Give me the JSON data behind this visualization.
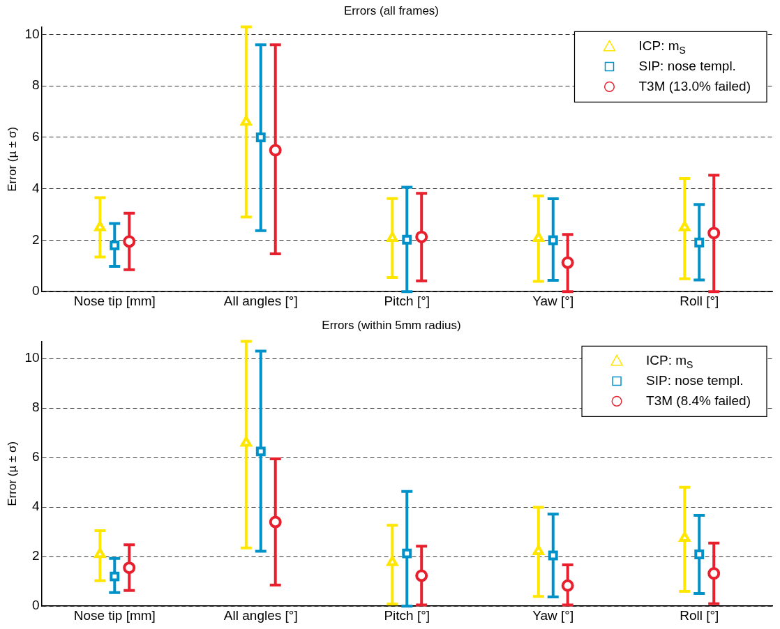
{
  "chart_data": [
    {
      "type": "scatter",
      "title": "Errors (all frames)",
      "ylabel": "Error (µ ± σ)",
      "categories": [
        "Nose tip [mm]",
        "All angles [°]",
        "Pitch [°]",
        "Yaw [°]",
        "Roll [°]"
      ],
      "ylim": [
        0,
        10.3
      ],
      "yticks": [
        0,
        2,
        4,
        6,
        8,
        10
      ],
      "grid": "y",
      "legend": "top right",
      "series": [
        {
          "name": "ICP: m$_{S}$",
          "color": "#ffe600",
          "marker": "triangle",
          "values": [
            2.5,
            6.6,
            2.08,
            2.08,
            2.5
          ],
          "errors": [
            [
              1.35,
              3.65
            ],
            [
              2.9,
              10.3
            ],
            [
              0.55,
              3.62
            ],
            [
              0.4,
              3.72
            ],
            [
              0.5,
              4.4
            ]
          ]
        },
        {
          "name": "SIP: nose templ.",
          "color": "#0091c8",
          "marker": "square",
          "values": [
            1.8,
            6.0,
            2.02,
            2.0,
            1.91
          ],
          "errors": [
            [
              0.98,
              2.65
            ],
            [
              2.37,
              9.6
            ],
            [
              0,
              4.06
            ],
            [
              0.44,
              3.61
            ],
            [
              0.45,
              3.39
            ]
          ]
        },
        {
          "name": "T3M (13.0% failed)",
          "color": "#e8202e",
          "marker": "circle",
          "values": [
            1.95,
            5.5,
            2.13,
            1.13,
            2.28
          ],
          "errors": [
            [
              0.85,
              3.05
            ],
            [
              1.47,
              9.6
            ],
            [
              0.42,
              3.82
            ],
            [
              0,
              2.22
            ],
            [
              0,
              4.53
            ]
          ]
        }
      ]
    },
    {
      "type": "scatter",
      "title": "Errors (within 5mm radius)",
      "ylabel": "Error (µ ± σ)",
      "categories": [
        "Nose tip [mm]",
        "All angles [°]",
        "Pitch [°]",
        "Yaw [°]",
        "Roll [°]"
      ],
      "ylim": [
        0,
        10.7
      ],
      "yticks": [
        0,
        2,
        4,
        6,
        8,
        10
      ],
      "grid": "y",
      "legend": "top right",
      "series": [
        {
          "name": "ICP: m$_{S}$",
          "color": "#ffe600",
          "marker": "triangle",
          "values": [
            2.1,
            6.6,
            1.77,
            2.22,
            2.75
          ],
          "errors": [
            [
              1.03,
              3.05
            ],
            [
              2.35,
              10.7
            ],
            [
              0.08,
              3.27
            ],
            [
              0.39,
              3.99
            ],
            [
              0.6,
              4.8
            ]
          ]
        },
        {
          "name": "SIP: nose templ.",
          "color": "#0091c8",
          "marker": "square",
          "values": [
            1.2,
            6.25,
            2.13,
            2.05,
            2.09
          ],
          "errors": [
            [
              0.55,
              1.93
            ],
            [
              2.22,
              10.3
            ],
            [
              0,
              4.63
            ],
            [
              0.37,
              3.72
            ],
            [
              0.51,
              3.67
            ]
          ]
        },
        {
          "name": "T3M (8.4% failed)",
          "color": "#e8202e",
          "marker": "circle",
          "values": [
            1.55,
            3.4,
            1.23,
            0.83,
            1.32
          ],
          "errors": [
            [
              0.63,
              2.48
            ],
            [
              0.85,
              5.95
            ],
            [
              0.05,
              2.42
            ],
            [
              0.05,
              1.67
            ],
            [
              0.1,
              2.55
            ]
          ]
        }
      ]
    }
  ]
}
